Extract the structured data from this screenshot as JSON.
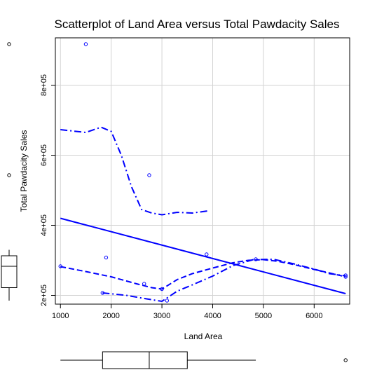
{
  "chart_data": {
    "type": "scatter",
    "title": "Scatterplot of Land Area versus Total Pawdacity Sales",
    "xlabel": "Land Area",
    "ylabel": "Total Pawdacity Sales",
    "xlim": [
      900,
      6700
    ],
    "ylim": [
      175000,
      935000
    ],
    "x_ticks": [
      1000,
      2000,
      3000,
      4000,
      5000,
      6000
    ],
    "x_tick_labels": [
      "1000",
      "2000",
      "3000",
      "4000",
      "5000",
      "6000"
    ],
    "y_ticks": [
      200000,
      400000,
      600000,
      800000
    ],
    "y_tick_labels": [
      "2e+05",
      "4e+05",
      "6e+05",
      "8e+05"
    ],
    "grid": true,
    "point_color": "#0000ff",
    "line_color": "#0000ff",
    "points": [
      {
        "x": 1000,
        "y": 283000
      },
      {
        "x": 1500,
        "y": 917000
      },
      {
        "x": 1830,
        "y": 207000
      },
      {
        "x": 1900,
        "y": 308000
      },
      {
        "x": 2650,
        "y": 233000
      },
      {
        "x": 2750,
        "y": 543000
      },
      {
        "x": 3000,
        "y": 218000
      },
      {
        "x": 3100,
        "y": 185000
      },
      {
        "x": 3880,
        "y": 317000
      },
      {
        "x": 4850,
        "y": 303000
      },
      {
        "x": 6620,
        "y": 253000
      },
      {
        "x": 6620,
        "y": 257000
      }
    ],
    "regression_line": {
      "x": [
        1000,
        6620
      ],
      "y": [
        420000,
        205000
      ]
    },
    "smooth_dashed": {
      "x": [
        1000,
        1500,
        2000,
        2500,
        2800,
        3000,
        3300,
        3600,
        4000,
        4400,
        4700,
        5000,
        5300,
        5600,
        6000,
        6300,
        6620
      ],
      "y": [
        282000,
        268000,
        253000,
        233000,
        222000,
        218000,
        245000,
        262000,
        278000,
        293000,
        300000,
        302000,
        297000,
        288000,
        274000,
        264000,
        253000
      ]
    },
    "smooth_dotdash_upper": {
      "x": [
        1000,
        1500,
        1800,
        2000,
        2200,
        2400,
        2600,
        2800,
        3000,
        3300,
        3600,
        3900
      ],
      "y": [
        673000,
        665000,
        680000,
        668000,
        600000,
        510000,
        445000,
        435000,
        430000,
        437000,
        435000,
        441000
      ]
    },
    "smooth_dotdash_lower": {
      "x": [
        1830,
        2300,
        2700,
        3000,
        3300,
        3600,
        4000,
        4400,
        4800,
        5200,
        5600,
        6000,
        6300,
        6620
      ],
      "y": [
        207000,
        200000,
        190000,
        183000,
        212000,
        230000,
        255000,
        285000,
        302000,
        303000,
        290000,
        275000,
        262000,
        256000
      ]
    },
    "y_marginal": {
      "outliers": [
        917000,
        543000
      ],
      "box": {
        "q1": 222000,
        "median": 283000,
        "q3": 313000,
        "whisker_low": 185000,
        "whisker_high": 330000
      }
    },
    "x_marginal": {
      "outliers": [
        6620
      ],
      "box": {
        "q1": 1830,
        "median": 2750,
        "q3": 3500,
        "whisker_low": 1000,
        "whisker_high": 4850
      }
    }
  }
}
